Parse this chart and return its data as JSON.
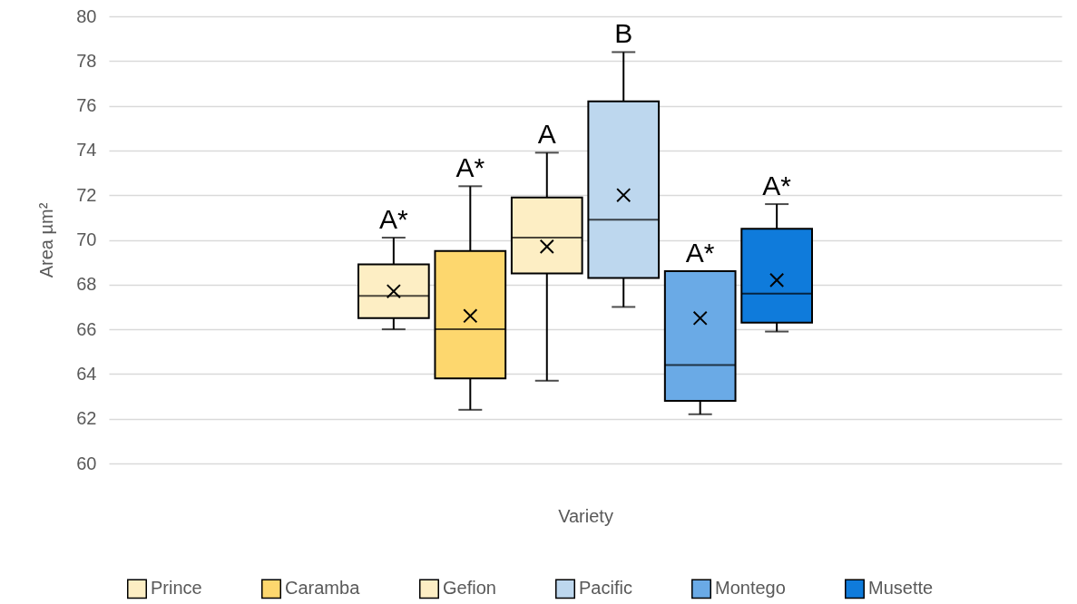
{
  "chart_data": {
    "type": "box",
    "xlabel": "Variety",
    "ylabel": "Area µm²",
    "categories": [
      null
    ],
    "ylim": [
      60,
      80
    ],
    "yticks": [
      60,
      62,
      64,
      66,
      68,
      70,
      72,
      74,
      76,
      78,
      80
    ],
    "grid": "y",
    "legend": "bottom",
    "tick_labels": "y",
    "series": [
      {
        "name": "Prince",
        "color": "#fdeec4",
        "boxes": [
          {
            "low": 66.0,
            "q1": 66.5,
            "median": 67.5,
            "q3": 68.9,
            "high": 70.1,
            "mean": 67.7
          }
        ]
      },
      {
        "name": "Caramba",
        "color": "#fdd76e",
        "boxes": [
          {
            "low": 62.4,
            "q1": 63.8,
            "median": 66.0,
            "q3": 69.5,
            "high": 72.4,
            "mean": 66.6
          }
        ]
      },
      {
        "name": "Gefion",
        "color": "#fdeec4",
        "boxes": [
          {
            "low": 63.7,
            "q1": 68.5,
            "median": 70.1,
            "q3": 71.9,
            "high": 73.9,
            "mean": 69.7
          }
        ]
      },
      {
        "name": "Pacific",
        "color": "#bdd7ee",
        "boxes": [
          {
            "low": 67.0,
            "q1": 68.3,
            "median": 70.9,
            "q3": 76.2,
            "high": 78.4,
            "mean": 72.0
          }
        ]
      },
      {
        "name": "Montego",
        "color": "#6aaae6",
        "boxes": [
          {
            "low": 62.2,
            "q1": 62.8,
            "median": 64.4,
            "q3": 68.6,
            "high": 68.6,
            "mean": 66.5
          }
        ]
      },
      {
        "name": "Musette",
        "color": "#0f7bdb",
        "boxes": [
          {
            "low": 65.9,
            "q1": 66.3,
            "median": 67.6,
            "q3": 70.5,
            "high": 71.6,
            "mean": 68.2
          }
        ]
      }
    ],
    "annotations": [
      "A*",
      "A*",
      "A",
      "B",
      "A*",
      "A*"
    ]
  }
}
